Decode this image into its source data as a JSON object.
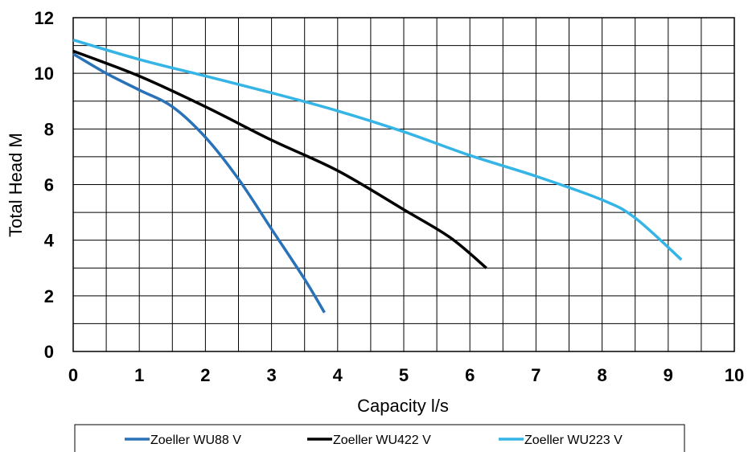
{
  "chart_data": {
    "type": "line",
    "title": "",
    "xlabel": "Capacity l/s",
    "ylabel": "Total Head M",
    "xlim": [
      0,
      10
    ],
    "ylim": [
      0,
      12
    ],
    "x_ticks": [
      "0",
      "1",
      "2",
      "3",
      "4",
      "5",
      "6",
      "7",
      "8",
      "9",
      "10"
    ],
    "y_ticks": [
      "0",
      "2",
      "4",
      "6",
      "8",
      "10",
      "12"
    ],
    "grid": true,
    "legend_position": "bottom",
    "series": [
      {
        "name": "Zoeller WU88 V",
        "color": "#2a72b8",
        "points": [
          [
            0,
            10.7
          ],
          [
            0.5,
            10.0
          ],
          [
            1.0,
            9.4
          ],
          [
            1.5,
            8.8
          ],
          [
            2.0,
            7.7
          ],
          [
            2.5,
            6.2
          ],
          [
            3.0,
            4.4
          ],
          [
            3.5,
            2.6
          ],
          [
            3.8,
            1.4
          ]
        ]
      },
      {
        "name": "Zoeller WU422 V",
        "color": "#000000",
        "points": [
          [
            0,
            10.8
          ],
          [
            1.0,
            9.9
          ],
          [
            2.0,
            8.8
          ],
          [
            3.0,
            7.6
          ],
          [
            4.0,
            6.5
          ],
          [
            5.0,
            5.1
          ],
          [
            5.7,
            4.1
          ],
          [
            6.25,
            3.0
          ]
        ]
      },
      {
        "name": "Zoeller WU223 V",
        "color": "#35b4e6",
        "points": [
          [
            0,
            11.2
          ],
          [
            1.0,
            10.5
          ],
          [
            2.0,
            9.9
          ],
          [
            3.0,
            9.3
          ],
          [
            4.0,
            8.65
          ],
          [
            5.0,
            7.9
          ],
          [
            6.0,
            7.05
          ],
          [
            7.0,
            6.3
          ],
          [
            8.0,
            5.45
          ],
          [
            8.5,
            4.8
          ],
          [
            9.2,
            3.3
          ]
        ]
      }
    ]
  }
}
